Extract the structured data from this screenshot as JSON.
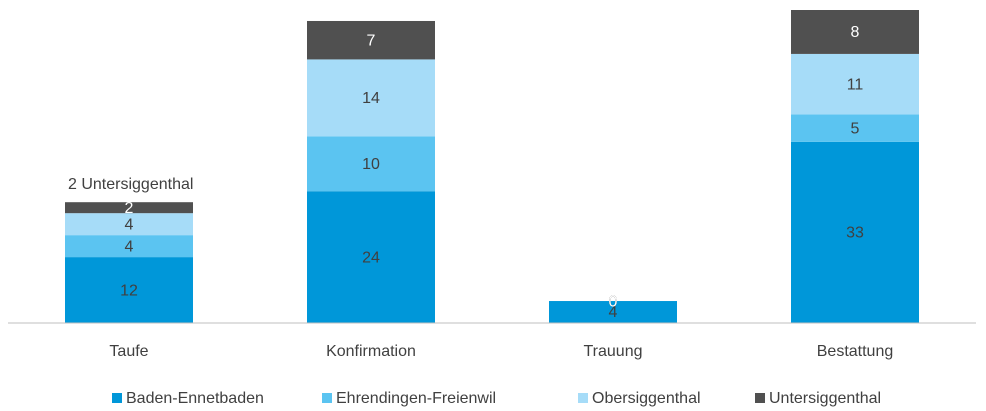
{
  "chart_data": {
    "type": "stacked_bar",
    "categories": [
      "Taufe",
      "Konfirmation",
      "Trauung",
      "Bestattung"
    ],
    "series": [
      {
        "name": "Baden-Ennetbaden",
        "color": "#0097d9",
        "values": [
          12,
          24,
          4,
          33
        ]
      },
      {
        "name": "Ehrendingen-Freienwil",
        "color": "#5bc4f1",
        "values": [
          4,
          10,
          0,
          5
        ]
      },
      {
        "name": "Obersiggenthal",
        "color": "#a6dcf8",
        "values": [
          4,
          14,
          0,
          11
        ]
      },
      {
        "name": "Untersiggenthal",
        "color": "#505050",
        "values": [
          2,
          7,
          0,
          8
        ]
      }
    ],
    "annotations": [
      "2 Untersiggenthal"
    ],
    "legend": "bottom"
  }
}
